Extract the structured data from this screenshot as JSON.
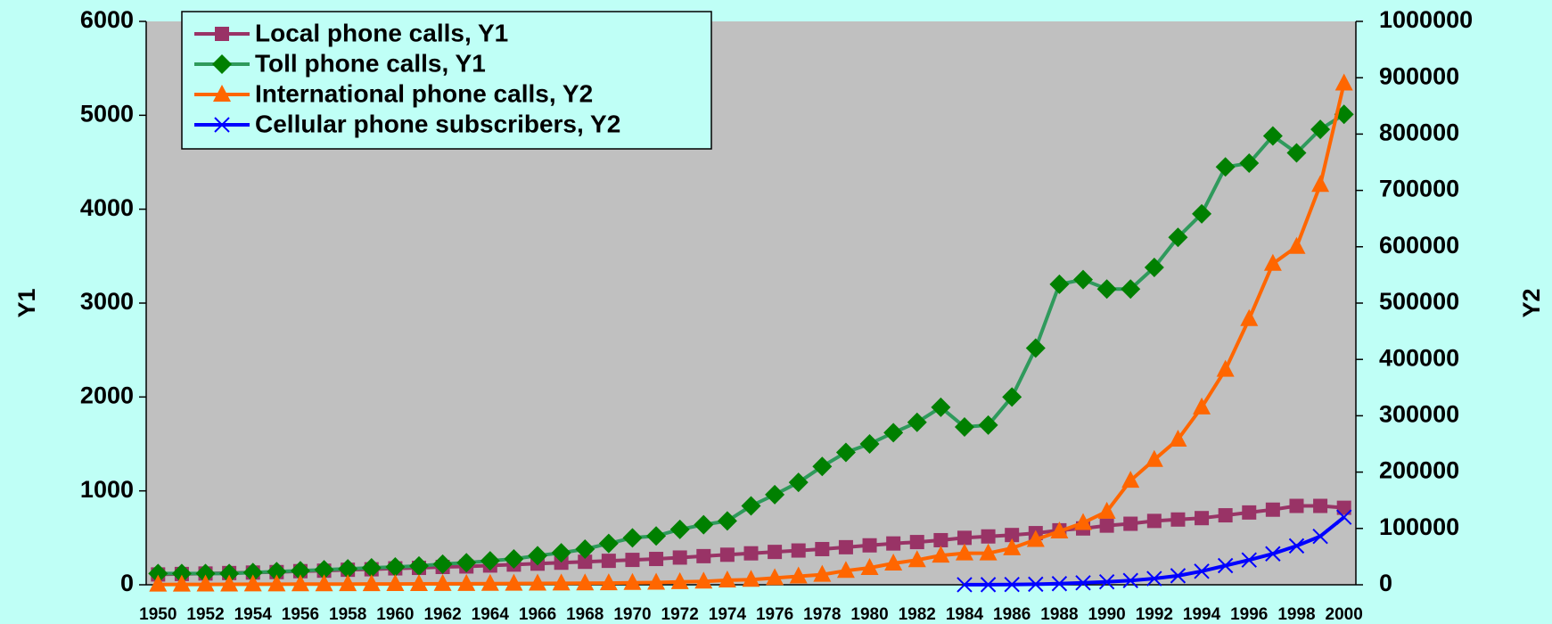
{
  "chart_data": {
    "type": "line",
    "categories": [
      "1950",
      null,
      "1952",
      null,
      "1954",
      null,
      "1956",
      null,
      "1958",
      null,
      "1960",
      null,
      "1962",
      null,
      "1964",
      null,
      "1966",
      null,
      "1968",
      null,
      "1970",
      null,
      "1972",
      null,
      "1974",
      null,
      "1976",
      null,
      "1978",
      null,
      "1980",
      null,
      "1982",
      null,
      "1984",
      null,
      "1986",
      null,
      "1988",
      null,
      "1990",
      null,
      "1992",
      null,
      "1994",
      null,
      "1996",
      null,
      "1998",
      null,
      "2000"
    ],
    "ylabel": "Y1",
    "y2label": "Y2",
    "ylim": [
      0,
      6000
    ],
    "yticks": [
      0,
      1000,
      2000,
      3000,
      4000,
      5000,
      6000
    ],
    "y2lim": [
      0,
      1000000
    ],
    "y2ticks": [
      0,
      100000,
      200000,
      300000,
      400000,
      500000,
      600000,
      700000,
      800000,
      900000,
      1000000
    ],
    "legend": "upper left",
    "series": [
      {
        "name": "Local phone calls, Y1",
        "color": "#993366",
        "marker": "square",
        "axis": "y",
        "values": [
          110,
          115,
          120,
          125,
          130,
          135,
          145,
          150,
          160,
          165,
          175,
          180,
          190,
          195,
          205,
          215,
          225,
          235,
          245,
          255,
          265,
          275,
          290,
          305,
          320,
          335,
          350,
          365,
          380,
          400,
          420,
          440,
          455,
          475,
          500,
          515,
          530,
          550,
          580,
          600,
          630,
          650,
          680,
          695,
          710,
          740,
          770,
          800,
          840,
          840,
          820
        ]
      },
      {
        "name": "Toll phone calls, Y1",
        "color": "#2f9a5c",
        "marker": "diamond",
        "axis": "y",
        "values": [
          120,
          120,
          120,
          120,
          130,
          140,
          150,
          160,
          170,
          180,
          190,
          200,
          220,
          235,
          255,
          275,
          310,
          340,
          380,
          440,
          500,
          520,
          590,
          640,
          680,
          840,
          960,
          1090,
          1260,
          1410,
          1500,
          1620,
          1730,
          1890,
          1680,
          1700,
          2000,
          2520,
          3200,
          3250,
          3150,
          3150,
          3380,
          3700,
          3950,
          4450,
          4490,
          4780,
          4600,
          4850,
          5010
        ]
      },
      {
        "name": "International phone calls, Y2",
        "color": "#ff6600",
        "marker": "triangle",
        "axis": "y2",
        "values": [
          500,
          600,
          700,
          800,
          900,
          1000,
          1100,
          1200,
          1300,
          1400,
          1500,
          1600,
          1700,
          1800,
          2000,
          2200,
          2400,
          2600,
          2800,
          3000,
          3500,
          4000,
          5000,
          6000,
          8000,
          9000,
          12000,
          15000,
          18000,
          25000,
          30000,
          38000,
          44000,
          52000,
          56000,
          56000,
          65000,
          80000,
          95000,
          110000,
          130000,
          185000,
          222000,
          258000,
          315000,
          382000,
          472000,
          570000,
          600000,
          710000,
          890000
        ]
      },
      {
        "name": "Cellular phone subscribers, Y2",
        "color": "#0000ff",
        "marker": "x",
        "axis": "y2",
        "values": [
          null,
          null,
          null,
          null,
          null,
          null,
          null,
          null,
          null,
          null,
          null,
          null,
          null,
          null,
          null,
          null,
          null,
          null,
          null,
          null,
          null,
          null,
          null,
          null,
          null,
          null,
          null,
          null,
          null,
          null,
          null,
          null,
          null,
          null,
          100,
          200,
          500,
          1000,
          2000,
          3500,
          5300,
          7500,
          11000,
          16000,
          24000,
          34000,
          44000,
          55000,
          69000,
          86000,
          120000
        ]
      }
    ]
  }
}
